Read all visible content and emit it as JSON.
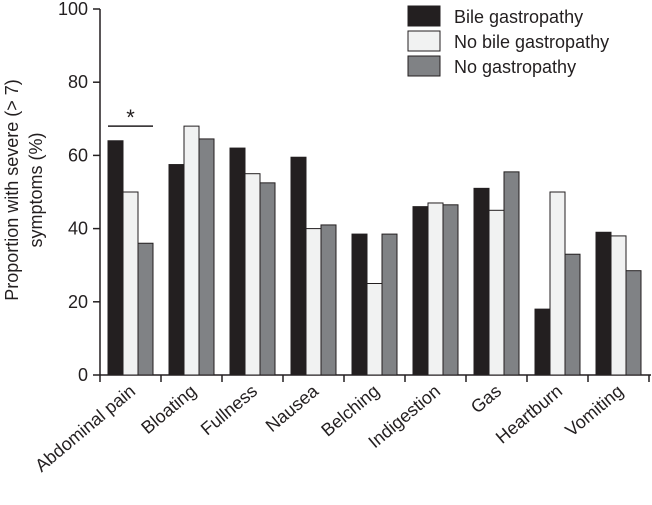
{
  "chart_data": {
    "type": "bar",
    "title": "",
    "xlabel": "",
    "ylabel": "Proportion with severe (> 7) symptoms (%)",
    "ylabel_lines": [
      "Proportion with severe (> 7)",
      "symptoms (%)"
    ],
    "ylim": [
      0,
      100
    ],
    "yticks": [
      "0",
      "20",
      "40",
      "60",
      "80",
      "100"
    ],
    "grid": false,
    "legend_position": "top-right",
    "categories": [
      "Abdominal pain",
      "Bloating",
      "Fullness",
      "Nausea",
      "Belching",
      "Indigestion",
      "Gas",
      "Heartburn",
      "Vomiting"
    ],
    "series": [
      {
        "name": "Bile gastropathy",
        "color": "#231f20",
        "values": [
          64,
          57.5,
          62,
          59.5,
          38.5,
          46,
          51,
          18,
          39
        ]
      },
      {
        "name": "No bile gastropathy",
        "color": "#f1f2f2",
        "values": [
          50,
          68,
          55,
          40,
          25,
          47,
          45,
          50,
          38
        ]
      },
      {
        "name": "No gastropathy",
        "color": "#808285",
        "values": [
          36,
          64.5,
          52.5,
          41,
          38.5,
          46.5,
          55.5,
          33,
          28.5
        ]
      }
    ],
    "annotations": [
      {
        "text": "*",
        "category": "Abdominal pain",
        "y": 68
      }
    ]
  }
}
